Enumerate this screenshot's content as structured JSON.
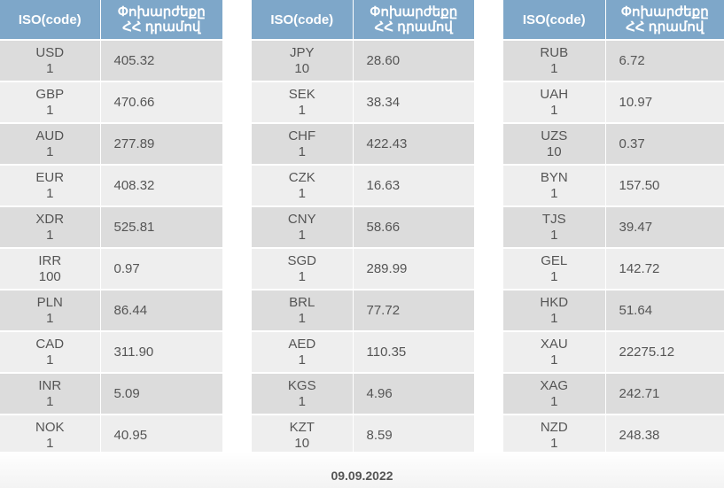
{
  "headers": {
    "iso": "ISO(code)",
    "rate_line1": "Փոխարժեքը",
    "rate_line2": "ՀՀ դրամով"
  },
  "columns": [
    {
      "rows": [
        {
          "code": "USD",
          "unit": "1",
          "rate": "405.32"
        },
        {
          "code": "GBP",
          "unit": "1",
          "rate": "470.66"
        },
        {
          "code": "AUD",
          "unit": "1",
          "rate": "277.89"
        },
        {
          "code": "EUR",
          "unit": "1",
          "rate": "408.32"
        },
        {
          "code": "XDR",
          "unit": "1",
          "rate": "525.81"
        },
        {
          "code": "IRR",
          "unit": "100",
          "rate": "0.97"
        },
        {
          "code": "PLN",
          "unit": "1",
          "rate": "86.44"
        },
        {
          "code": "CAD",
          "unit": "1",
          "rate": "311.90"
        },
        {
          "code": "INR",
          "unit": "1",
          "rate": "5.09"
        },
        {
          "code": "NOK",
          "unit": "1",
          "rate": "40.95"
        }
      ]
    },
    {
      "rows": [
        {
          "code": "JPY",
          "unit": "10",
          "rate": "28.60"
        },
        {
          "code": "SEK",
          "unit": "1",
          "rate": "38.34"
        },
        {
          "code": "CHF",
          "unit": "1",
          "rate": "422.43"
        },
        {
          "code": "CZK",
          "unit": "1",
          "rate": "16.63"
        },
        {
          "code": "CNY",
          "unit": "1",
          "rate": "58.66"
        },
        {
          "code": "SGD",
          "unit": "1",
          "rate": "289.99"
        },
        {
          "code": "BRL",
          "unit": "1",
          "rate": "77.72"
        },
        {
          "code": "AED",
          "unit": "1",
          "rate": "110.35"
        },
        {
          "code": "KGS",
          "unit": "1",
          "rate": "4.96"
        },
        {
          "code": "KZT",
          "unit": "10",
          "rate": "8.59"
        }
      ]
    },
    {
      "rows": [
        {
          "code": "RUB",
          "unit": "1",
          "rate": "6.72"
        },
        {
          "code": "UAH",
          "unit": "1",
          "rate": "10.97"
        },
        {
          "code": "UZS",
          "unit": "10",
          "rate": "0.37"
        },
        {
          "code": "BYN",
          "unit": "1",
          "rate": "157.50"
        },
        {
          "code": "TJS",
          "unit": "1",
          "rate": "39.47"
        },
        {
          "code": "GEL",
          "unit": "1",
          "rate": "142.72"
        },
        {
          "code": "HKD",
          "unit": "1",
          "rate": "51.64"
        },
        {
          "code": "XAU",
          "unit": "1",
          "rate": "22275.12"
        },
        {
          "code": "XAG",
          "unit": "1",
          "rate": "242.71"
        },
        {
          "code": "NZD",
          "unit": "1",
          "rate": "248.38"
        }
      ]
    }
  ],
  "date": "09.09.2022"
}
